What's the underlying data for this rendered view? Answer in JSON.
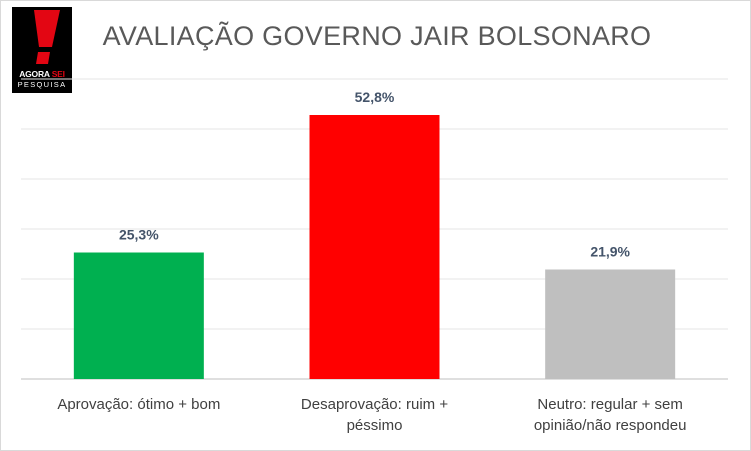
{
  "logo": {
    "text_line1_a": "AGORA",
    "text_line1_b": "SEI",
    "text_line2": "PESQUISA",
    "icon": "exclamation-logo-icon"
  },
  "chart_data": {
    "type": "bar",
    "title": "AVALIAÇÃO GOVERNO JAIR BOLSONARO",
    "categories": [
      "Aprovação: ótimo + bom",
      "Desaprovação: ruim + péssimo",
      "Neutro: regular + sem opinião/não respondeu"
    ],
    "values": [
      25.3,
      52.8,
      21.9
    ],
    "value_labels": [
      "25,3%",
      "52,8%",
      "21,9%"
    ],
    "colors": [
      "#00b050",
      "#ff0000",
      "#bfbfbf"
    ],
    "ylim": [
      0,
      60
    ],
    "grid": true,
    "legend": "none",
    "xlabel": "",
    "ylabel": ""
  },
  "category_labels": [
    [
      "Aprovação: ótimo + bom"
    ],
    [
      "Desaprovação: ruim +",
      "péssimo"
    ],
    [
      "Neutro: regular + sem",
      "opinião/não respondeu"
    ]
  ]
}
